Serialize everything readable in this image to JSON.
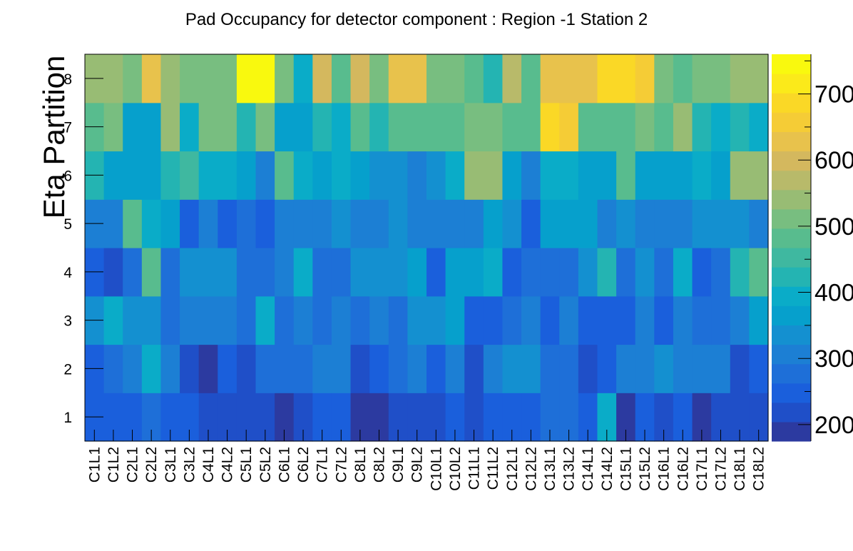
{
  "chart_data": {
    "type": "heatmap",
    "title": "Pad Occupancy for detector component : Region -1 Station 2",
    "xlabel": "",
    "ylabel": "Eta Partition",
    "x_categories": [
      "C1L1",
      "C1L2",
      "C2L1",
      "C2L2",
      "C3L1",
      "C3L2",
      "C4L1",
      "C4L2",
      "C5L1",
      "C5L2",
      "C6L1",
      "C6L2",
      "C7L1",
      "C7L2",
      "C8L1",
      "C8L2",
      "C9L1",
      "C9L2",
      "C10L1",
      "C10L2",
      "C11L1",
      "C11L2",
      "C12L1",
      "C12L2",
      "C13L1",
      "C13L2",
      "C14L1",
      "C14L2",
      "C15L1",
      "C15L2",
      "C16L1",
      "C16L2",
      "C17L1",
      "C17L2",
      "C18L1",
      "C18L2"
    ],
    "y_categories": [
      "1",
      "2",
      "3",
      "4",
      "5",
      "6",
      "7",
      "8"
    ],
    "zlim": [
      175,
      760
    ],
    "z_ticks": [
      "200",
      "300",
      "400",
      "500",
      "600",
      "700"
    ],
    "palette": [
      "#2c3aa0",
      "#1f4fc8",
      "#1a5fdc",
      "#1e6fd8",
      "#1c7fd4",
      "#1490d0",
      "#06a0cc",
      "#0aacc8",
      "#24b4b2",
      "#3fb8a0",
      "#58bc8e",
      "#78be80",
      "#98bc74",
      "#b8ba6a",
      "#d4b85e",
      "#e8c24c",
      "#f5cc36",
      "#fad826",
      "#fbea1a",
      "#f9f90e"
    ],
    "values": [
      [
        240,
        240,
        240,
        265,
        245,
        245,
        225,
        225,
        225,
        225,
        190,
        220,
        245,
        260,
        200,
        200,
        205,
        205,
        225,
        250,
        220,
        240,
        240,
        240,
        270,
        270,
        250,
        380,
        195,
        240,
        220,
        245,
        200,
        220,
        210,
        215
      ],
      [
        245,
        285,
        300,
        380,
        300,
        225,
        190,
        245,
        215,
        265,
        280,
        290,
        320,
        320,
        220,
        255,
        270,
        295,
        250,
        300,
        225,
        300,
        340,
        350,
        280,
        280,
        220,
        250,
        300,
        300,
        325,
        310,
        320,
        320,
        230,
        250
      ],
      [
        340,
        380,
        340,
        340,
        280,
        300,
        300,
        300,
        290,
        380,
        280,
        300,
        270,
        320,
        280,
        320,
        270,
        350,
        350,
        360,
        250,
        250,
        280,
        320,
        260,
        310,
        260,
        260,
        260,
        310,
        260,
        300,
        290,
        290,
        310,
        370
      ],
      [
        250,
        230,
        280,
        480,
        270,
        350,
        330,
        330,
        270,
        270,
        310,
        400,
        290,
        290,
        330,
        330,
        330,
        370,
        260,
        360,
        360,
        390,
        250,
        290,
        290,
        290,
        330,
        430,
        290,
        340,
        280,
        380,
        250,
        280,
        410,
        480
      ],
      [
        320,
        310,
        470,
        380,
        360,
        260,
        300,
        250,
        290,
        250,
        300,
        300,
        310,
        350,
        320,
        300,
        350,
        320,
        300,
        300,
        310,
        370,
        330,
        250,
        370,
        370,
        370,
        300,
        330,
        300,
        320,
        320,
        350,
        350,
        330,
        300
      ],
      [
        420,
        370,
        370,
        370,
        410,
        440,
        380,
        380,
        370,
        320,
        470,
        400,
        370,
        400,
        370,
        330,
        350,
        310,
        350,
        380,
        540,
        540,
        370,
        320,
        400,
        400,
        370,
        370,
        480,
        370,
        360,
        360,
        400,
        370,
        550,
        550
      ],
      [
        480,
        500,
        370,
        360,
        540,
        400,
        500,
        500,
        420,
        500,
        370,
        370,
        420,
        400,
        470,
        430,
        470,
        470,
        470,
        470,
        500,
        520,
        480,
        490,
        680,
        660,
        470,
        490,
        470,
        500,
        480,
        530,
        420,
        400,
        420,
        400
      ],
      [
        550,
        530,
        520,
        620,
        550,
        510,
        510,
        510,
        760,
        760,
        500,
        400,
        600,
        470,
        610,
        520,
        640,
        640,
        520,
        520,
        490,
        410,
        560,
        470,
        640,
        640,
        620,
        700,
        700,
        660,
        520,
        480,
        520,
        520,
        540,
        540
      ]
    ]
  }
}
